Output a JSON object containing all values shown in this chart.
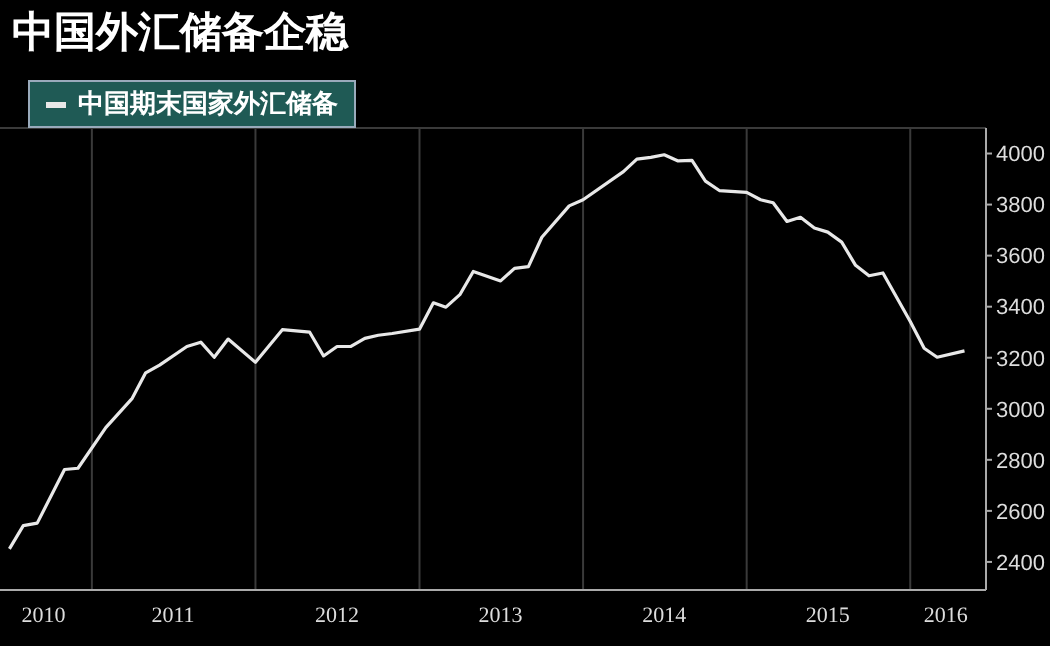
{
  "chart_data": {
    "type": "line",
    "title": "中国外汇储备企稳",
    "legend": "top left",
    "grid": true,
    "x": [
      "2010-07",
      "2010-08",
      "2010-09",
      "2010-11",
      "2010-12",
      "2011-02",
      "2011-04",
      "2011-05",
      "2011-06",
      "2011-08",
      "2011-09",
      "2011-10",
      "2011-11",
      "2012-01",
      "2012-03",
      "2012-05",
      "2012-06",
      "2012-07",
      "2012-08",
      "2012-09",
      "2012-10",
      "2012-11",
      "2013-01",
      "2013-02",
      "2013-03",
      "2013-04",
      "2013-05",
      "2013-07",
      "2013-08",
      "2013-09",
      "2013-10",
      "2013-12",
      "2014-01",
      "2014-04",
      "2014-05",
      "2014-06",
      "2014-07",
      "2014-08",
      "2014-09",
      "2014-10",
      "2014-11",
      "2015-01",
      "2015-02",
      "2015-03",
      "2015-04",
      "2015-05",
      "2015-06",
      "2015-07",
      "2015-08",
      "2015-09",
      "2015-10",
      "2015-11",
      "2016-01",
      "2016-02",
      "2016-03",
      "2016-05"
    ],
    "series": [
      {
        "name": "中国期末国家外汇储备",
        "color": "#e8e8e8",
        "values": [
          2451,
          2542,
          2552,
          2762,
          2767,
          2926,
          3041,
          3141,
          3171,
          3244,
          3261,
          3202,
          3273,
          3182,
          3310,
          3300,
          3207,
          3244,
          3244,
          3276,
          3288,
          3295,
          3312,
          3415,
          3398,
          3447,
          3538,
          3501,
          3550,
          3557,
          3672,
          3795,
          3819,
          3929,
          3978,
          3985,
          3995,
          3971,
          3973,
          3892,
          3855,
          3848,
          3819,
          3807,
          3734,
          3750,
          3708,
          3692,
          3653,
          3562,
          3521,
          3532,
          3342,
          3237,
          3202,
          3227
        ]
      }
    ],
    "xlim": [
      "2010-06-10",
      "2016-06-18"
    ],
    "xticks": [
      {
        "value": "2010-09-15",
        "label": "2010"
      },
      {
        "value": "2011-01-01",
        "label": null
      },
      {
        "value": "2011-07-01",
        "label": "2011"
      },
      {
        "value": "2012-01-01",
        "label": null
      },
      {
        "value": "2012-07-01",
        "label": "2012"
      },
      {
        "value": "2013-01-01",
        "label": null
      },
      {
        "value": "2013-07-01",
        "label": "2013"
      },
      {
        "value": "2014-01-01",
        "label": null
      },
      {
        "value": "2014-07-01",
        "label": "2014"
      },
      {
        "value": "2015-01-01",
        "label": null
      },
      {
        "value": "2015-07-01",
        "label": "2015"
      },
      {
        "value": "2016-01-01",
        "label": null
      },
      {
        "value": "2016-03-20",
        "label": "2016"
      }
    ],
    "ylim": [
      2290,
      4100
    ],
    "yticks": [
      2400,
      2600,
      2800,
      3000,
      3200,
      3400,
      3600,
      3800,
      4000
    ]
  }
}
